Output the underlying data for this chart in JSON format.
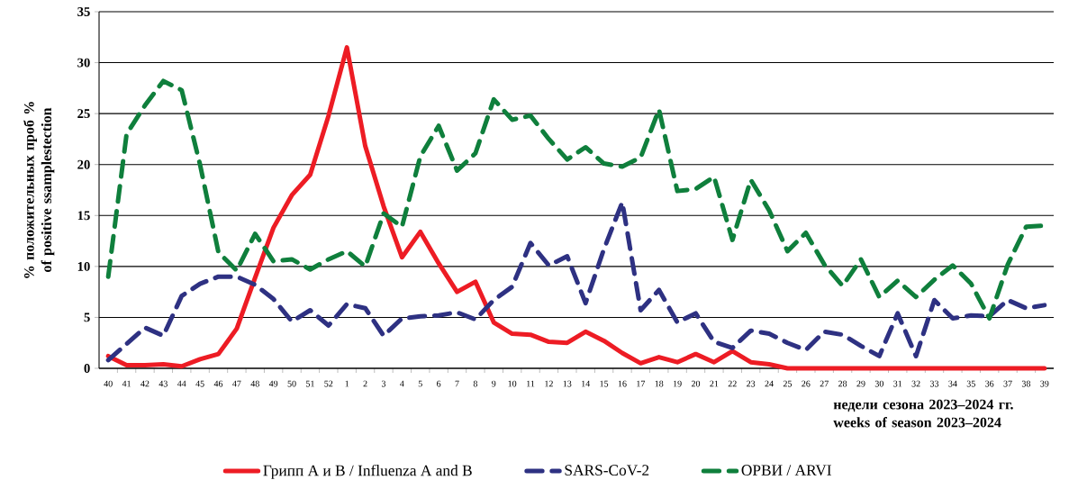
{
  "chart_data": {
    "type": "line",
    "categories": [
      "40",
      "41",
      "42",
      "43",
      "44",
      "45",
      "46",
      "47",
      "48",
      "49",
      "50",
      "51",
      "52",
      "1",
      "2",
      "3",
      "4",
      "5",
      "6",
      "7",
      "8",
      "9",
      "10",
      "11",
      "12",
      "13",
      "14",
      "15",
      "16",
      "17",
      "18",
      "19",
      "20",
      "21",
      "22",
      "23",
      "24",
      "25",
      "26",
      "27",
      "28",
      "29",
      "30",
      "31",
      "32",
      "33",
      "34",
      "35",
      "36",
      "37",
      "38",
      "39"
    ],
    "series": [
      {
        "name": "Грипп А и В / Influenza A and B",
        "color": "#ed1c24",
        "line_style": "solid",
        "values": [
          1.2,
          0.3,
          0.3,
          0.4,
          0.2,
          0.9,
          1.4,
          3.9,
          8.9,
          13.8,
          17,
          19,
          24.8,
          31.5,
          21.8,
          15.9,
          10.9,
          13.4,
          10.3,
          7.5,
          8.5,
          4.5,
          3.4,
          3.3,
          2.6,
          2.5,
          3.6,
          2.7,
          1.5,
          0.5,
          1.1,
          0.6,
          1.4,
          0.6,
          1.7,
          0.6,
          0.4,
          0,
          0,
          0,
          0,
          0,
          0,
          0,
          0,
          0,
          0,
          0,
          0,
          0,
          0,
          0
        ]
      },
      {
        "name": "SARS-CoV-2",
        "color": "#2e3182",
        "line_style": "dashed",
        "values": [
          0.8,
          2.4,
          4,
          3.2,
          7.1,
          8.3,
          9,
          9,
          8.2,
          6.8,
          4.6,
          5.7,
          4.2,
          6.3,
          5.9,
          3.2,
          4.9,
          5.1,
          5.2,
          5.5,
          4.8,
          6.7,
          8,
          12.3,
          10.1,
          11,
          6.4,
          11.7,
          16.3,
          5.7,
          7.7,
          4.5,
          5.4,
          2.6,
          2,
          3.7,
          3.4,
          2.5,
          1.8,
          3.6,
          3.3,
          2.2,
          1.2,
          5.4,
          1.2,
          6.7,
          4.9,
          5.2,
          5.1,
          6.7,
          5.9,
          6.2
        ]
      },
      {
        "name": "ОРВИ / ARVI",
        "color": "#0f7f3c",
        "line_style": "dashed",
        "values": [
          9,
          23,
          25.8,
          28.2,
          27.3,
          20,
          11.4,
          9.6,
          13.2,
          10.5,
          10.7,
          9.7,
          10.7,
          11.5,
          10,
          15.2,
          13.9,
          20.8,
          23.8,
          19.4,
          21.1,
          26.4,
          24.4,
          24.8,
          22.5,
          20.5,
          21.7,
          20.1,
          19.8,
          20.7,
          25.4,
          17.4,
          17.6,
          18.8,
          12.6,
          18.5,
          15.5,
          11.5,
          13.3,
          10.2,
          8.1,
          10.7,
          7,
          8.6,
          7,
          8.7,
          10.1,
          8.3,
          4.9,
          10.2,
          13.9,
          14
        ]
      }
    ],
    "xlabel": "недели сезона 2023–2024 гг. weeks of season 2023–2024",
    "ylabel": "% положительных проб % of positive ssamplestection",
    "ylim": [
      0,
      35
    ],
    "yticks": [
      0,
      5,
      10,
      15,
      20,
      25,
      30,
      35
    ],
    "grid": "y",
    "legend": "bottom",
    "marker": "none"
  }
}
